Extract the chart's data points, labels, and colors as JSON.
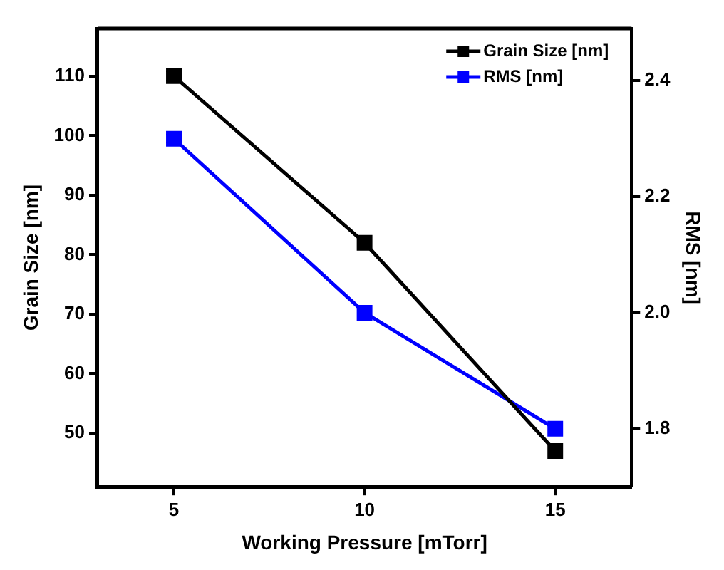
{
  "chart_data": {
    "type": "line",
    "xlabel": "Working Pressure [mTorr]",
    "ylabel": "Grain Size [nm]",
    "y2label": "RMS [nm]",
    "x": [
      5,
      10,
      15
    ],
    "series": [
      {
        "name": "Grain Size [nm]",
        "color": "#000000",
        "values": [
          110,
          82,
          47
        ]
      },
      {
        "name": "RMS [nm]",
        "color": "#0000ff",
        "values": [
          2.3,
          2.0,
          1.8
        ],
        "axis": "y2"
      }
    ],
    "xlim": [
      3,
      17
    ],
    "xticks": [
      5,
      10,
      15
    ],
    "ylim": [
      41,
      118
    ],
    "yticks": [
      50,
      60,
      70,
      80,
      90,
      100,
      110
    ],
    "y2lim": [
      1.7,
      2.49
    ],
    "y2ticks": [
      1.8,
      {
        "value": 2,
        "label": "2.0"
      },
      2.2,
      2.4
    ],
    "legend": "top right",
    "marker": "square",
    "grid": false
  }
}
